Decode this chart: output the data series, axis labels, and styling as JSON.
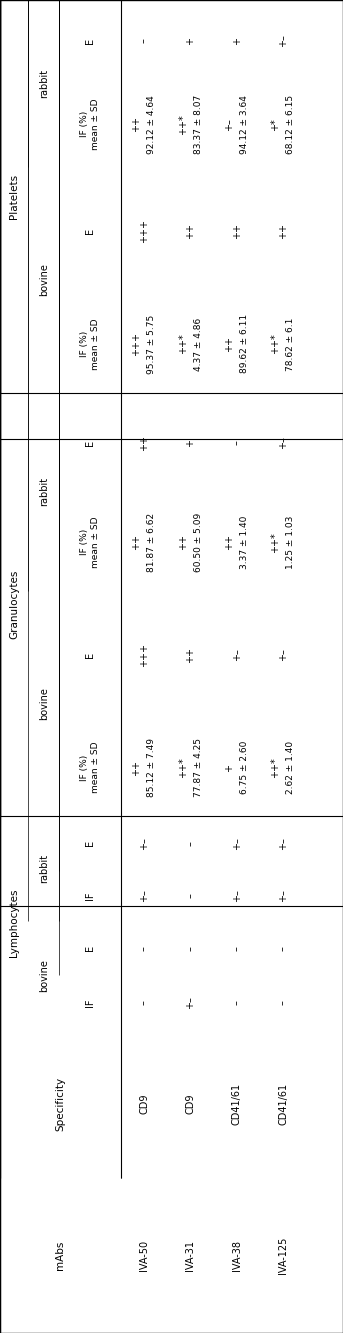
{
  "background": "#ffffff",
  "rows": [
    {
      "mab": "IVA-50",
      "spec": "CD9",
      "lymph_bov_IF": "–",
      "lymph_bov_E": "–",
      "lymph_rab_IF": "+–",
      "lymph_rab_E": "+–",
      "gran_bov_IF_sym": "++",
      "gran_bov_IF_num": "85.12 ± 7.49",
      "gran_bov_E": "+++",
      "gran_rab_IF_sym": "++",
      "gran_rab_IF_num": "81.87 ± 6.62",
      "gran_rab_E": "++",
      "plat_bov_IF_sym": "+++",
      "plat_bov_IF_num": "95.37 ± 5.75",
      "plat_bov_E": "+++",
      "plat_rab_IF_sym": "++",
      "plat_rab_IF_num": "92.12 ± 4.64",
      "plat_rab_E": "–"
    },
    {
      "mab": "IVA-31",
      "spec": "CD9",
      "lymph_bov_IF": "+–",
      "lymph_bov_E": "–",
      "lymph_rab_IF": "–",
      "lymph_rab_E": "–",
      "gran_bov_IF_sym": "++*",
      "gran_bov_IF_num": "77.87 ± 4.25",
      "gran_bov_E": "++",
      "gran_rab_IF_sym": "++",
      "gran_rab_IF_num": "60.50 ± 5.09",
      "gran_rab_E": "+",
      "plat_bov_IF_sym": "++*",
      "plat_bov_IF_num": "4.37 ± 4.86",
      "plat_bov_E": "++",
      "plat_rab_IF_sym": "++*",
      "plat_rab_IF_num": "83.37 ± 8.07",
      "plat_rab_E": "+"
    },
    {
      "mab": "IVA-38",
      "spec": "CD41/61",
      "lymph_bov_IF": "–",
      "lymph_bov_E": "–",
      "lymph_rab_IF": "+–",
      "lymph_rab_E": "+–",
      "gran_bov_IF_sym": "+",
      "gran_bov_IF_num": "6.75 ± 2.60",
      "gran_bov_E": "+–",
      "gran_rab_IF_sym": "++",
      "gran_rab_IF_num": "3.37 ± 1.40",
      "gran_rab_E": "–",
      "plat_bov_IF_sym": "++",
      "plat_bov_IF_num": "89.62 ± 6.11",
      "plat_bov_E": "++",
      "plat_rab_IF_sym": "+–",
      "plat_rab_IF_num": "94.12 ± 3.64",
      "plat_rab_E": "+"
    },
    {
      "mab": "IVA-125",
      "spec": "CD41/61",
      "lymph_bov_IF": "–",
      "lymph_bov_E": "–",
      "lymph_rab_IF": "+–",
      "lymph_rab_E": "+–",
      "gran_bov_IF_sym": "++*",
      "gran_bov_IF_num": "2.62 ± 1.40",
      "gran_bov_E": "+–",
      "gran_rab_IF_sym": "++*",
      "gran_rab_IF_num": "1.25 ± 1.03",
      "gran_rab_E": "+–",
      "plat_bov_IF_sym": "++*",
      "plat_bov_IF_num": "78.62 ± 6.1",
      "plat_bov_E": "++",
      "plat_rab_IF_sym": "+*",
      "plat_rab_IF_num": "68.12 ± 6.15",
      "plat_rab_E": "+–"
    }
  ],
  "col_boundaries": [
    0,
    40,
    78,
    92,
    106,
    119,
    133,
    158,
    191,
    216,
    242,
    267,
    300,
    322,
    343
  ],
  "row_boundaries": [
    0,
    110,
    230,
    470,
    650,
    830,
    1010,
    1190,
    1333
  ]
}
